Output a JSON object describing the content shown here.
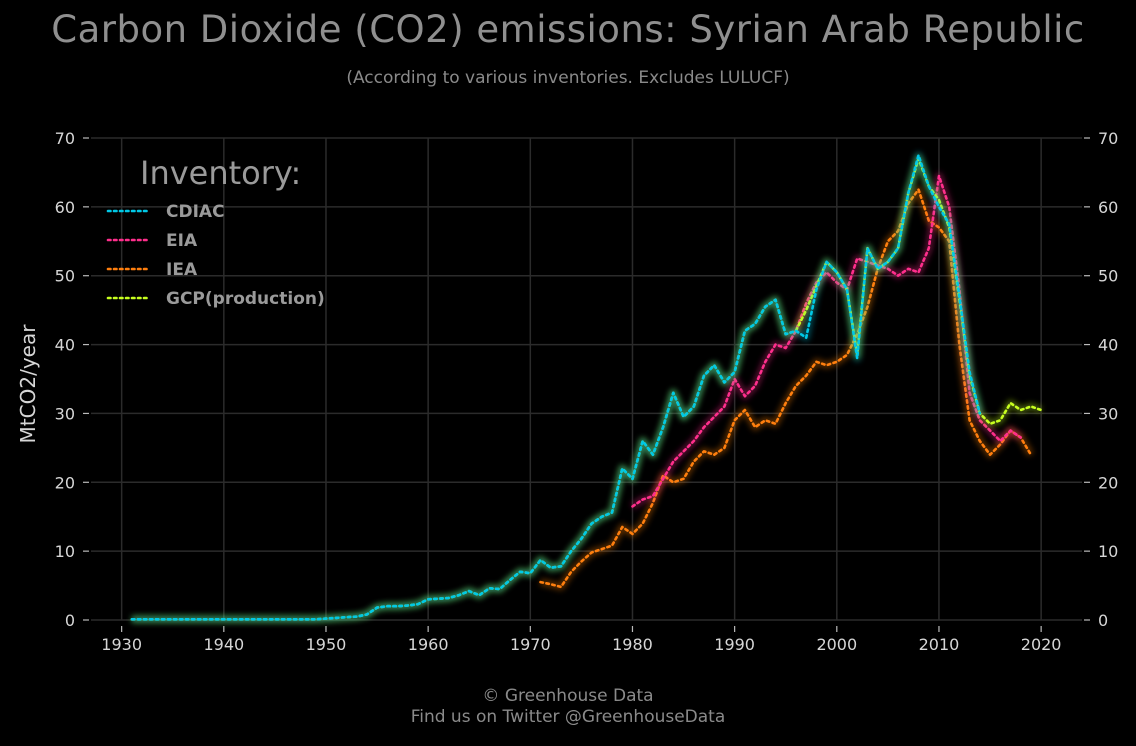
{
  "header": {
    "title": "Carbon Dioxide (CO2) emissions: Syrian Arab Republic",
    "subtitle": "(According to various inventories. Excludes LULUCF)"
  },
  "footer": {
    "line1": "© Greenhouse Data",
    "line2": "Find us on Twitter @GreenhouseData"
  },
  "chart_data": {
    "type": "line",
    "title": "Carbon Dioxide (CO2) emissions: Syrian Arab Republic",
    "subtitle": "(According to various inventories. Excludes LULUCF)",
    "xlabel": "",
    "ylabel": "MtCO2/year",
    "xlim": [
      1927,
      2024
    ],
    "ylim": [
      0,
      70
    ],
    "xticks": [
      1930,
      1940,
      1950,
      1960,
      1970,
      1980,
      1990,
      2000,
      2010,
      2020
    ],
    "yticks": [
      0,
      10,
      20,
      30,
      40,
      50,
      60,
      70
    ],
    "grid": true,
    "legend": {
      "title": "Inventory:",
      "placement": "top-left"
    },
    "series": [
      {
        "name": "CDIAC",
        "color": "#00c8e6",
        "x": [
          1931,
          1932,
          1933,
          1934,
          1935,
          1936,
          1937,
          1938,
          1939,
          1940,
          1941,
          1942,
          1943,
          1944,
          1945,
          1946,
          1947,
          1948,
          1949,
          1950,
          1951,
          1952,
          1953,
          1954,
          1955,
          1956,
          1957,
          1958,
          1959,
          1960,
          1961,
          1962,
          1963,
          1964,
          1965,
          1966,
          1967,
          1968,
          1969,
          1970,
          1971,
          1972,
          1973,
          1974,
          1975,
          1976,
          1977,
          1978,
          1979,
          1980,
          1981,
          1982,
          1983,
          1984,
          1985,
          1986,
          1987,
          1988,
          1989,
          1990,
          1991,
          1992,
          1993,
          1994,
          1995,
          1996,
          1997,
          1998,
          1999,
          2000,
          2001,
          2002,
          2003,
          2004,
          2005,
          2006,
          2007,
          2008,
          2009,
          2010,
          2011,
          2012,
          2013,
          2014
        ],
        "y": [
          0.1,
          0.1,
          0.1,
          0.1,
          0.1,
          0.1,
          0.1,
          0.1,
          0.1,
          0.1,
          0.1,
          0.1,
          0.1,
          0.1,
          0.1,
          0.1,
          0.1,
          0.1,
          0.1,
          0.2,
          0.3,
          0.4,
          0.5,
          0.8,
          1.8,
          2.0,
          2.0,
          2.1,
          2.3,
          3.0,
          3.1,
          3.2,
          3.6,
          4.2,
          3.6,
          4.6,
          4.5,
          5.8,
          7.0,
          6.8,
          8.7,
          7.6,
          7.8,
          10.0,
          11.8,
          14.0,
          15.0,
          15.6,
          22.0,
          20.5,
          26.0,
          24.0,
          28.0,
          33.0,
          29.5,
          31.0,
          35.5,
          37.0,
          34.5,
          36.0,
          42.0,
          43.0,
          45.5,
          46.5,
          41.5,
          42.0,
          41.0,
          48.0,
          52.0,
          50.5,
          48.0,
          38.0,
          54.0,
          51.0,
          52.0,
          54.0,
          62.0,
          67.5,
          63.0,
          60.0,
          57.5,
          47.0,
          36.0,
          30.0
        ]
      },
      {
        "name": "EIA",
        "color": "#ff2e8c",
        "x": [
          1980,
          1981,
          1982,
          1983,
          1984,
          1985,
          1986,
          1987,
          1988,
          1989,
          1990,
          1991,
          1992,
          1993,
          1994,
          1995,
          1996,
          1997,
          1998,
          1999,
          2000,
          2001,
          2002,
          2003,
          2004,
          2005,
          2006,
          2007,
          2008,
          2009,
          2010,
          2011,
          2012,
          2013,
          2014,
          2015,
          2016,
          2017,
          2018
        ],
        "y": [
          16.5,
          17.5,
          18.0,
          20.5,
          23.0,
          24.5,
          26.0,
          28.0,
          29.5,
          31.0,
          35.0,
          32.5,
          34.0,
          37.5,
          40.0,
          39.5,
          42.0,
          46.0,
          49.0,
          50.5,
          49.0,
          48.0,
          52.5,
          52.0,
          51.5,
          51.0,
          50.0,
          51.0,
          50.5,
          54.0,
          64.5,
          60.0,
          48.0,
          33.0,
          29.0,
          27.5,
          26.0,
          27.5,
          26.5
        ]
      },
      {
        "name": "IEA",
        "color": "#ff7f0e",
        "x": [
          1971,
          1972,
          1973,
          1974,
          1975,
          1976,
          1977,
          1978,
          1979,
          1980,
          1981,
          1982,
          1983,
          1984,
          1985,
          1986,
          1987,
          1988,
          1989,
          1990,
          1991,
          1992,
          1993,
          1994,
          1995,
          1996,
          1997,
          1998,
          1999,
          2000,
          2001,
          2002,
          2003,
          2004,
          2005,
          2006,
          2007,
          2008,
          2009,
          2010,
          2011,
          2012,
          2013,
          2014,
          2015,
          2016,
          2017,
          2018,
          2019
        ],
        "y": [
          5.5,
          5.2,
          4.8,
          7.0,
          8.5,
          9.8,
          10.3,
          10.8,
          13.5,
          12.5,
          14.0,
          17.0,
          21.0,
          20.0,
          20.5,
          23.0,
          24.5,
          24.0,
          25.0,
          29.0,
          30.5,
          28.0,
          29.0,
          28.5,
          31.5,
          34.0,
          35.5,
          37.5,
          37.0,
          37.5,
          38.5,
          41.5,
          45.5,
          51.0,
          55.0,
          56.5,
          60.5,
          62.5,
          58.0,
          57.0,
          55.0,
          40.0,
          29.0,
          26.0,
          24.0,
          25.5,
          27.5,
          26.5,
          24.0
        ]
      },
      {
        "name": "GCP(production)",
        "color": "#c7ff1f",
        "x": [
          1931,
          1932,
          1933,
          1934,
          1935,
          1936,
          1937,
          1938,
          1939,
          1940,
          1941,
          1942,
          1943,
          1944,
          1945,
          1946,
          1947,
          1948,
          1949,
          1950,
          1951,
          1952,
          1953,
          1954,
          1955,
          1956,
          1957,
          1958,
          1959,
          1960,
          1961,
          1962,
          1963,
          1964,
          1965,
          1966,
          1967,
          1968,
          1969,
          1970,
          1971,
          1972,
          1973,
          1974,
          1975,
          1976,
          1977,
          1978,
          1979,
          1980,
          1981,
          1982,
          1983,
          1984,
          1985,
          1986,
          1987,
          1988,
          1989,
          1990,
          1991,
          1992,
          1993,
          1994,
          1995,
          1996,
          1997,
          1998,
          1999,
          2000,
          2001,
          2002,
          2003,
          2004,
          2005,
          2006,
          2007,
          2008,
          2009,
          2010,
          2011,
          2012,
          2013,
          2014,
          2015,
          2016,
          2017,
          2018,
          2019,
          2020
        ],
        "y": [
          0.1,
          0.1,
          0.1,
          0.1,
          0.1,
          0.1,
          0.1,
          0.1,
          0.1,
          0.1,
          0.1,
          0.1,
          0.1,
          0.1,
          0.1,
          0.1,
          0.1,
          0.1,
          0.1,
          0.2,
          0.3,
          0.4,
          0.5,
          0.8,
          1.8,
          2.0,
          2.0,
          2.1,
          2.3,
          3.0,
          3.1,
          3.2,
          3.6,
          4.2,
          3.6,
          4.6,
          4.5,
          5.8,
          7.0,
          6.8,
          8.7,
          7.6,
          7.8,
          10.0,
          11.8,
          14.0,
          15.0,
          15.6,
          22.0,
          20.5,
          26.0,
          24.0,
          28.0,
          33.0,
          29.5,
          31.0,
          35.5,
          37.0,
          34.5,
          36.0,
          42.0,
          43.0,
          45.5,
          46.5,
          41.5,
          42.0,
          45.0,
          48.5,
          52.0,
          50.5,
          48.0,
          38.5,
          54.0,
          51.0,
          52.0,
          54.0,
          62.0,
          67.0,
          63.0,
          61.0,
          57.0,
          46.5,
          35.5,
          30.0,
          28.5,
          29.0,
          31.5,
          30.5,
          31.0,
          30.5
        ]
      }
    ]
  }
}
